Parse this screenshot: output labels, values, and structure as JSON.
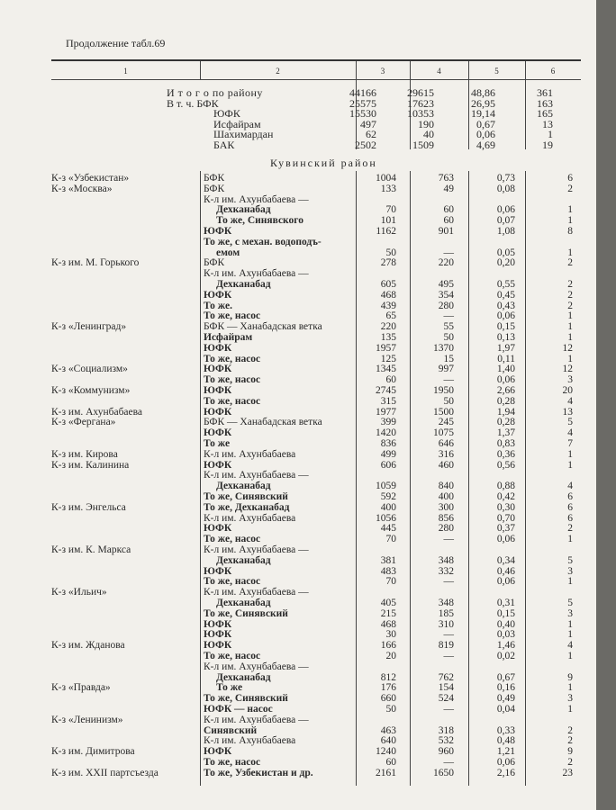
{
  "title": "Продолжение табл.69",
  "column_numbers": [
    "1",
    "2",
    "3",
    "4",
    "5",
    "6"
  ],
  "summary": {
    "labels": [
      "И т о г о по району",
      "В т. ч. БФК",
      "ЮФК",
      "Исфайрам",
      "Шахимардан",
      "БАК"
    ],
    "col3": [
      "44166",
      "25575",
      "15530",
      "497",
      "62",
      "2502"
    ],
    "col4": [
      "29615",
      "17623",
      "10353",
      "190",
      "40",
      "1509"
    ],
    "col5": [
      "48,86",
      "26,95",
      "19,14",
      "0,67",
      "0,06",
      "4,69"
    ],
    "col6": [
      "361",
      "163",
      "165",
      "13",
      "1",
      "19"
    ]
  },
  "section_title": "Кувинский район",
  "rows": [
    {
      "c1": "К-з «Узбекистан»",
      "c2": "БФК",
      "c3": "1004",
      "c4": "763",
      "c5": "0,73",
      "c6": "6"
    },
    {
      "c1": "К-з «Москва»",
      "c2": "БФК",
      "c3": "133",
      "c4": "49",
      "c5": "0,08",
      "c6": "2"
    },
    {
      "c1": "",
      "c2": "К-л им. Ахунбабаева —",
      "c3": "",
      "c4": "",
      "c5": "",
      "c6": ""
    },
    {
      "c1": "",
      "c2": "Дехканабад",
      "ind": true,
      "c3": "70",
      "c4": "60",
      "c5": "0,06",
      "c6": "1"
    },
    {
      "c1": "",
      "c2": "То же, Синявского",
      "ind": true,
      "c3": "101",
      "c4": "60",
      "c5": "0,07",
      "c6": "1"
    },
    {
      "c1": "",
      "c2": "ЮФК",
      "c3": "1162",
      "c4": "901",
      "c5": "1,08",
      "c6": "8"
    },
    {
      "c1": "",
      "c2": "То же, с механ. водоподъ-",
      "c3": "",
      "c4": "",
      "c5": "",
      "c6": ""
    },
    {
      "c1": "",
      "c2": "емом",
      "ind": true,
      "c3": "50",
      "c4": "—",
      "c5": "0,05",
      "c6": "1"
    },
    {
      "c1": "К-з им. М. Горького",
      "c2": "БФК",
      "c3": "278",
      "c4": "220",
      "c5": "0,20",
      "c6": "2"
    },
    {
      "c1": "",
      "c2": "К-л им. Ахунбабаева —",
      "c3": "",
      "c4": "",
      "c5": "",
      "c6": ""
    },
    {
      "c1": "",
      "c2": "Дехканабад",
      "ind": true,
      "c3": "605",
      "c4": "495",
      "c5": "0,55",
      "c6": "2"
    },
    {
      "c1": "",
      "c2": "ЮФК",
      "c3": "468",
      "c4": "354",
      "c5": "0,45",
      "c6": "2"
    },
    {
      "c1": "",
      "c2": "То же.",
      "c3": "439",
      "c4": "280",
      "c5": "0,43",
      "c6": "2"
    },
    {
      "c1": "",
      "c2": "То же, насос",
      "c3": "65",
      "c4": "—",
      "c5": "0,06",
      "c6": "1"
    },
    {
      "c1": "К-з «Ленинград»",
      "c2": "БФК — Ханабадская ветка",
      "c3": "220",
      "c4": "55",
      "c5": "0,15",
      "c6": "1"
    },
    {
      "c1": "",
      "c2": "Исфайрам",
      "c3": "135",
      "c4": "50",
      "c5": "0,13",
      "c6": "1"
    },
    {
      "c1": "",
      "c2": "ЮФК",
      "c3": "1957",
      "c4": "1370",
      "c5": "1,97",
      "c6": "12"
    },
    {
      "c1": "",
      "c2": "То же, насос",
      "c3": "125",
      "c4": "15",
      "c5": "0,11",
      "c6": "1"
    },
    {
      "c1": "К-з «Социализм»",
      "c2": "ЮФК",
      "c3": "1345",
      "c4": "997",
      "c5": "1,40",
      "c6": "12"
    },
    {
      "c1": "",
      "c2": "То же, насос",
      "c3": "60",
      "c4": "—",
      "c5": "0,06",
      "c6": "3"
    },
    {
      "c1": "К-з «Коммунизм»",
      "c2": "ЮФК",
      "c3": "2745",
      "c4": "1950",
      "c5": "2,66",
      "c6": "20"
    },
    {
      "c1": "",
      "c2": "То же, насос",
      "c3": "315",
      "c4": "50",
      "c5": "0,28",
      "c6": "4"
    },
    {
      "c1": "К-з им. Ахунбабаева",
      "c2": "ЮФК",
      "c3": "1977",
      "c4": "1500",
      "c5": "1,94",
      "c6": "13"
    },
    {
      "c1": "К-з «Фергана»",
      "c2": "БФК — Ханабадская ветка",
      "c3": "399",
      "c4": "245",
      "c5": "0,28",
      "c6": "5"
    },
    {
      "c1": "",
      "c2": "ЮФК",
      "c3": "1420",
      "c4": "1075",
      "c5": "1,37",
      "c6": "4"
    },
    {
      "c1": "",
      "c2": "То же",
      "c3": "836",
      "c4": "646",
      "c5": "0,83",
      "c6": "7"
    },
    {
      "c1": "К-з им. Кирова",
      "c2": "К-л им. Ахунбабаева",
      "c3": "499",
      "c4": "316",
      "c5": "0,36",
      "c6": "1"
    },
    {
      "c1": "К-з им. Калинина",
      "c2": "ЮФК",
      "c3": "606",
      "c4": "460",
      "c5": "0,56",
      "c6": "1"
    },
    {
      "c1": "",
      "c2": "К-л им. Ахунбабаева —",
      "c3": "",
      "c4": "",
      "c5": "",
      "c6": ""
    },
    {
      "c1": "",
      "c2": "Дехканабад",
      "ind": true,
      "c3": "1059",
      "c4": "840",
      "c5": "0,88",
      "c6": "4"
    },
    {
      "c1": "",
      "c2": "То же, Синявский",
      "c3": "592",
      "c4": "400",
      "c5": "0,42",
      "c6": "6"
    },
    {
      "c1": "К-з им. Энгельса",
      "c2": "То же, Дехканабад",
      "c3": "400",
      "c4": "300",
      "c5": "0,30",
      "c6": "6"
    },
    {
      "c1": "",
      "c2": "К-л им. Ахунбабаева",
      "c3": "1056",
      "c4": "856",
      "c5": "0,70",
      "c6": "6"
    },
    {
      "c1": "",
      "c2": "ЮФК",
      "c3": "445",
      "c4": "280",
      "c5": "0,37",
      "c6": "2"
    },
    {
      "c1": "",
      "c2": "То же, насос",
      "c3": "70",
      "c4": "—",
      "c5": "0,06",
      "c6": "1"
    },
    {
      "c1": "К-з им. К. Маркса",
      "c2": "К-л им. Ахунбабаева —",
      "c3": "",
      "c4": "",
      "c5": "",
      "c6": ""
    },
    {
      "c1": "",
      "c2": "Дехканабад",
      "ind": true,
      "c3": "381",
      "c4": "348",
      "c5": "0,34",
      "c6": "5"
    },
    {
      "c1": "",
      "c2": "ЮФК",
      "c3": "483",
      "c4": "332",
      "c5": "0,46",
      "c6": "3"
    },
    {
      "c1": "",
      "c2": "То же, насос",
      "c3": "70",
      "c4": "—",
      "c5": "0,06",
      "c6": "1"
    },
    {
      "c1": "К-з «Ильич»",
      "c2": "К-л им. Ахунбабаева —",
      "c3": "",
      "c4": "",
      "c5": "",
      "c6": ""
    },
    {
      "c1": "",
      "c2": "Дехканабад",
      "ind": true,
      "c3": "405",
      "c4": "348",
      "c5": "0,31",
      "c6": "5"
    },
    {
      "c1": "",
      "c2": "То же, Синявский",
      "c3": "215",
      "c4": "185",
      "c5": "0,15",
      "c6": "3"
    },
    {
      "c1": "",
      "c2": "ЮФК",
      "c3": "468",
      "c4": "310",
      "c5": "0,40",
      "c6": "1"
    },
    {
      "c1": "",
      "c2": "ЮФК",
      "c3": "30",
      "c4": "—",
      "c5": "0,03",
      "c6": "1"
    },
    {
      "c1": "К-з им. Жданова",
      "c2": "ЮФК",
      "c3": "166",
      "c4": "819",
      "c5": "1,46",
      "c6": "4"
    },
    {
      "c1": "",
      "c2": "То же, насос",
      "c3": "20",
      "c4": "—",
      "c5": "0,02",
      "c6": "1"
    },
    {
      "c1": "",
      "c2": "К-л им. Ахунбабаева —",
      "c3": "",
      "c4": "",
      "c5": "",
      "c6": ""
    },
    {
      "c1": "",
      "c2": "Дехканабад",
      "ind": true,
      "c3": "812",
      "c4": "762",
      "c5": "0,67",
      "c6": "9"
    },
    {
      "c1": "К-з «Правда»",
      "c2": "То же",
      "ind": true,
      "c3": "176",
      "c4": "154",
      "c5": "0,16",
      "c6": "1"
    },
    {
      "c1": "",
      "c2": "То же, Синявский",
      "c3": "660",
      "c4": "524",
      "c5": "0,49",
      "c6": "3"
    },
    {
      "c1": "",
      "c2": "ЮФК — насос",
      "c3": "50",
      "c4": "—",
      "c5": "0,04",
      "c6": "1"
    },
    {
      "c1": "К-з «Ленинизм»",
      "c2": "К-л им. Ахунбабаева —",
      "c3": "",
      "c4": "",
      "c5": "",
      "c6": ""
    },
    {
      "c1": "",
      "c2": "Синявский",
      "c3": "463",
      "c4": "318",
      "c5": "0,33",
      "c6": "2"
    },
    {
      "c1": "",
      "c2": "К-л им. Ахунбабаева",
      "c3": "640",
      "c4": "532",
      "c5": "0,48",
      "c6": "2"
    },
    {
      "c1": "К-з им. Димитрова",
      "c2": "ЮФК",
      "c3": "1240",
      "c4": "960",
      "c5": "1,21",
      "c6": "9"
    },
    {
      "c1": "",
      "c2": "То же, насос",
      "c3": "60",
      "c4": "—",
      "c5": "0,06",
      "c6": "2"
    },
    {
      "c1": "К-з им. XXII партсъезда",
      "c2": "То же, Узбекистан и др.",
      "c3": "2161",
      "c4": "1650",
      "c5": "2,16",
      "c6": "23"
    }
  ]
}
